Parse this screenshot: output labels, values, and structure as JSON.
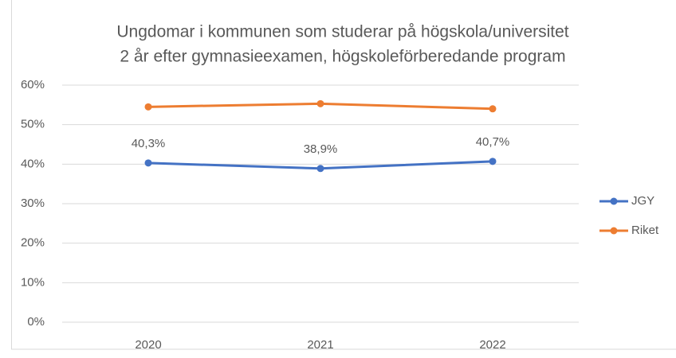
{
  "chart_data": {
    "type": "line",
    "title": [
      "Ungdomar i kommunen som studerar på högskola/universitet",
      "2 år efter gymnasieexamen, högskoleförberedande program"
    ],
    "categories": [
      "2020",
      "2021",
      "2022"
    ],
    "series": [
      {
        "name": "JGY",
        "color": "#4472c4",
        "values": [
          40.3,
          38.9,
          40.7
        ],
        "value_labels": [
          "40,3%",
          "38,9%",
          "40,7%"
        ]
      },
      {
        "name": "Riket",
        "color": "#ed7d31",
        "values": [
          54.5,
          55.3,
          54.0
        ]
      }
    ],
    "ylim": [
      0,
      60
    ],
    "yticks": [
      {
        "value": 0,
        "label": "0%"
      },
      {
        "value": 10,
        "label": "10%"
      },
      {
        "value": 20,
        "label": "20%"
      },
      {
        "value": 30,
        "label": "30%"
      },
      {
        "value": 40,
        "label": "40%"
      },
      {
        "value": 50,
        "label": "50%"
      },
      {
        "value": 60,
        "label": "60%"
      }
    ],
    "grid": true,
    "legend": "right"
  }
}
